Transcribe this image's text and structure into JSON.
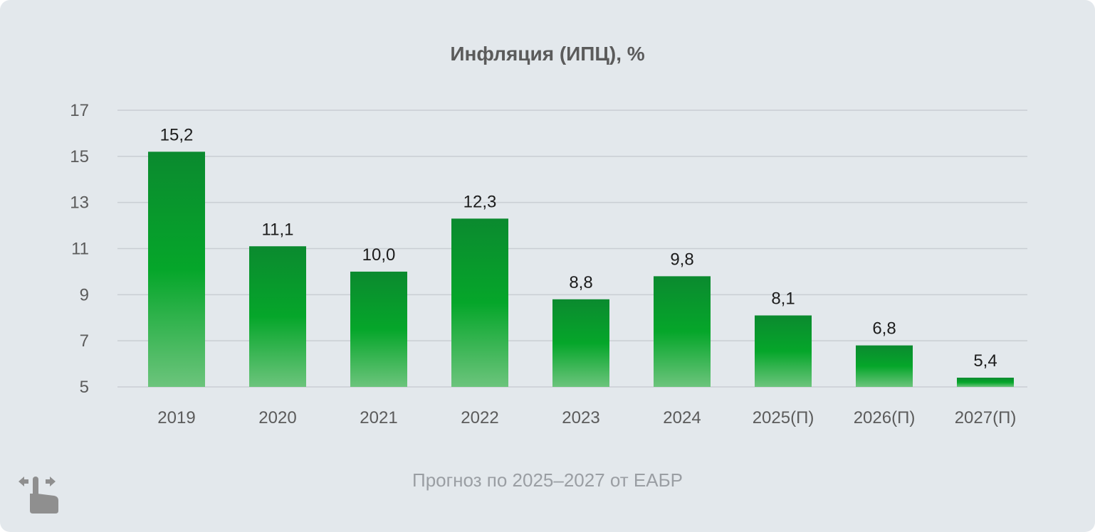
{
  "chart_data": {
    "type": "bar",
    "title": "Инфляция (ИПЦ), %",
    "xlabel": "",
    "ylabel": "",
    "categories": [
      "2019",
      "2020",
      "2021",
      "2022",
      "2023",
      "2024",
      "2025(П)",
      "2026(П)",
      "2027(П)"
    ],
    "values": [
      15.2,
      11.1,
      10.0,
      12.3,
      8.8,
      9.8,
      8.1,
      6.8,
      5.4
    ],
    "value_labels": [
      "15,2",
      "11,1",
      "10,0",
      "12,3",
      "8,8",
      "9,8",
      "8,1",
      "6,8",
      "5,4"
    ],
    "yticks": [
      5,
      7,
      9,
      11,
      13,
      15,
      17
    ],
    "ylim": [
      5,
      17
    ],
    "grid": true,
    "legend": "none",
    "bar_color_top": "#0b8a2f",
    "bar_color_mid": "#05a62a",
    "bar_color_bottom": "#6cc47c"
  },
  "footnote": "Прогноз по 2025–2027 от ЕАБР",
  "icons": {
    "swipe": "swipe-hand-icon"
  },
  "colors": {
    "background": "#e3e8ec",
    "text": "#5b5b5b",
    "grid": "#c9ced3",
    "icon": "#8f8f8f"
  }
}
